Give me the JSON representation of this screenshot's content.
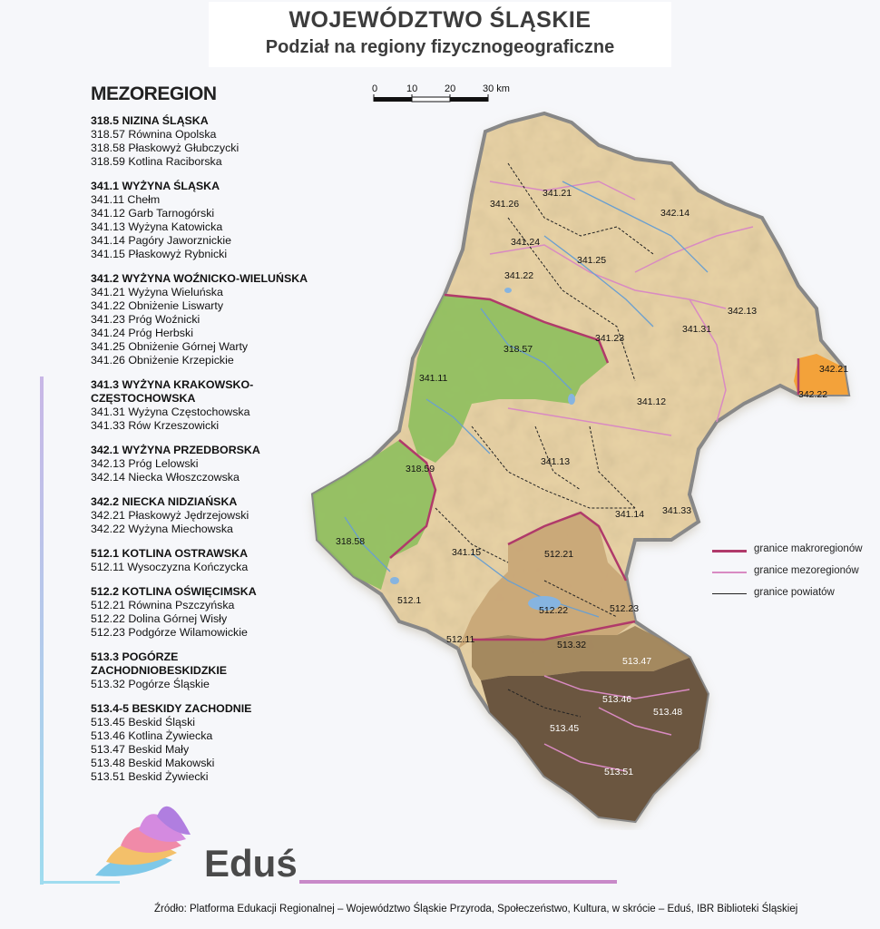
{
  "header": {
    "title": "WOJEWÓDZTWO ŚLĄSKIE",
    "subtitle": "Podział na regiony fizycznogeograficzne"
  },
  "legend": {
    "heading": "MEZOREGION",
    "groups": [
      {
        "title": "318.5 NIZINA ŚLĄSKA",
        "items": [
          "318.57 Równina Opolska",
          "318.58 Płaskowyż Głubczycki",
          "318.59 Kotlina Raciborska"
        ]
      },
      {
        "title": "341.1 WYŻYNA ŚLĄSKA",
        "items": [
          "341.11 Chełm",
          "341.12 Garb Tarnogórski",
          "341.13 Wyżyna Katowicka",
          "341.14 Pagóry Jaworznickie",
          "341.15 Płaskowyż Rybnicki"
        ]
      },
      {
        "title": "341.2 WYŻYNA WOŹNICKO-WIELUŃSKA",
        "items": [
          "341.21 Wyżyna Wieluńska",
          "341.22 Obniżenie Liswarty",
          "341.23 Próg Woźnicki",
          "341.24 Próg Herbski",
          "341.25 Obniżenie Górnej Warty",
          "341.26 Obniżenie Krzepickie"
        ]
      },
      {
        "title": "341.3 WYŻYNA KRAKOWSKO-\nCZĘSTOCHOWSKA",
        "items": [
          "341.31 Wyżyna Częstochowska",
          "341.33 Rów Krzeszowicki"
        ]
      },
      {
        "title": "342.1 WYŻYNA PRZEDBORSKA",
        "items": [
          "342.13 Próg Lelowski",
          "342.14 Niecka Włoszczowska"
        ]
      },
      {
        "title": "342.2 NIECKA NIDZIAŃSKA",
        "items": [
          "342.21 Płaskowyż Jędrzejowski",
          "342.22 Wyżyna Miechowska"
        ]
      },
      {
        "title": "512.1 KOTLINA OSTRAWSKA",
        "items": [
          "512.11 Wysoczyzna Kończycka"
        ]
      },
      {
        "title": "512.2 KOTLINA OŚWIĘCIMSKA",
        "items": [
          "512.21 Równina Pszczyńska",
          "512.22 Dolina Górnej Wisły",
          "512.23 Podgórze Wilamowickie"
        ]
      },
      {
        "title": "513.3 POGÓRZE ZACHODNIOBESKIDZKIE",
        "items": [
          "513.32 Pogórze Śląskie"
        ]
      },
      {
        "title": "513.4-5 BESKIDY ZACHODNIE",
        "items": [
          "513.45 Beskid Śląski",
          "513.46 Kotlina Żywiecka",
          "513.47 Beskid Mały",
          "513.48 Beskid Makowski",
          "513.51 Beskid Żywiecki"
        ]
      }
    ]
  },
  "scale": {
    "ticks": [
      "0",
      "10",
      "20",
      "30 km"
    ]
  },
  "map": {
    "colors": {
      "upland": "#e9d3a6",
      "lowland": "#8fbf5e",
      "basin": "#c8a677",
      "foothills": "#a0855c",
      "mountains": "#6b5640",
      "nidziańska": "#f3a23a",
      "outline": "#8c8c8c"
    },
    "region_labels": [
      {
        "code": "341.21"
      },
      {
        "code": "341.26"
      },
      {
        "code": "342.14"
      },
      {
        "code": "341.24"
      },
      {
        "code": "341.25"
      },
      {
        "code": "341.22"
      },
      {
        "code": "342.13"
      },
      {
        "code": "341.31"
      },
      {
        "code": "341.23"
      },
      {
        "code": "318.57"
      },
      {
        "code": "342.21"
      },
      {
        "code": "342.22"
      },
      {
        "code": "341.11"
      },
      {
        "code": "341.12"
      },
      {
        "code": "318.59"
      },
      {
        "code": "341.13"
      },
      {
        "code": "341.14"
      },
      {
        "code": "341.33"
      },
      {
        "code": "318.58"
      },
      {
        "code": "512.21"
      },
      {
        "code": "341.15"
      },
      {
        "code": "512.1"
      },
      {
        "code": "512.22"
      },
      {
        "code": "512.23"
      },
      {
        "code": "512.11"
      },
      {
        "code": "513.32"
      },
      {
        "code": "513.47"
      },
      {
        "code": "513.46"
      },
      {
        "code": "513.48"
      },
      {
        "code": "513.45"
      },
      {
        "code": "513.51"
      }
    ],
    "legend": [
      {
        "label": "granice makroregionów",
        "color": "#b03a6a"
      },
      {
        "label": "granice mezoregionów",
        "color": "#d98ac2"
      },
      {
        "label": "granice powiatów",
        "color": "#222222"
      }
    ]
  },
  "footer": {
    "brand": "Eduś",
    "source": "Źródło: Platforma Edukacji Regionalnej – Województwo Śląskie Przyroda, Społeczeństwo, Kultura, w skrócie – Eduś, IBR Biblioteki Śląskiej"
  }
}
